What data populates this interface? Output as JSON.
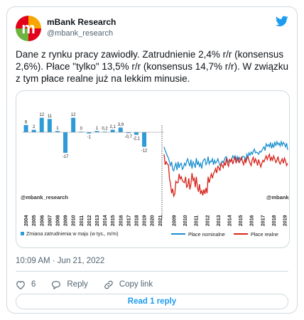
{
  "account": {
    "name": "mBank Research",
    "handle": "@mbank_research",
    "brand_colors": [
      "#e2001a",
      "#f7a600",
      "#6db33f"
    ],
    "verified_icon": "twitter-bird-icon",
    "twitter_blue": "#1d9bf0"
  },
  "tweet_text": "Dane z rynku pracy zawiodły. Zatrudnienie 2,4% r/r (konsensus 2,6%). Płace \"tylko\" 13,5% r/r (konsensus 14,7% r/r). W związku z tym płace realne już na lekkim minusie.",
  "timestamp": "10:09 AM · Jun 21, 2022",
  "actions": {
    "like_count": "6",
    "reply_label": "Reply",
    "copy_link_label": "Copy link"
  },
  "read_replies_label": "Read 1 reply",
  "chart_data": [
    {
      "type": "bar",
      "categories": [
        "2004",
        "2005",
        "2006",
        "2007",
        "2008",
        "2009",
        "2010",
        "2011",
        "2012",
        "2013",
        "2014",
        "2015",
        "2016",
        "2017",
        "2018",
        "2019",
        "2020",
        "2021"
      ],
      "values": [
        6,
        2,
        12,
        11,
        1,
        -17,
        12,
        0,
        -1,
        1,
        0.2,
        2.1,
        3.9,
        -0.7,
        -2.1,
        -12,
        null,
        null
      ],
      "value_labels": [
        "6",
        "2",
        "12",
        "11",
        "1",
        "-17",
        "12",
        "0",
        "-1",
        "1",
        "0,2",
        "2,1",
        "3,9",
        "-0,7",
        "-2,1",
        "-12",
        "",
        ""
      ],
      "x_tick_labels": [
        "2004",
        "2005",
        "2006",
        "2007",
        "2008",
        "2009",
        "2010",
        "2011",
        "2012",
        "2013",
        "2014",
        "2015",
        "2016",
        "2017",
        "2018",
        "2019",
        "2020",
        "2021"
      ],
      "legend": "Zmiana zatrudnienia w maju (w tys., m/m)",
      "color": "#2e9bd6",
      "watermark": "@mbank_research"
    },
    {
      "type": "line",
      "x_tick_labels": [
        "2009",
        "2010",
        "2011",
        "2012",
        "2013",
        "2014",
        "2015",
        "2016",
        "2017",
        "2018",
        "2019"
      ],
      "series": [
        {
          "name": "Płace nominalne",
          "color": "#1a8fd0",
          "values": [
            1.0,
            0.5,
            0.2,
            -0.2,
            -0.5,
            -1.0,
            -1.5,
            -1.0,
            -2.0,
            -2.2,
            -1.6,
            -1.2,
            -2.1,
            -1.0,
            -1.8,
            -1.3,
            -1.2,
            -2.0,
            -1.8,
            -1.2,
            -1.5,
            -0.9,
            -0.6,
            -1.2,
            -1.6,
            -0.7,
            -1.9,
            -1.0,
            -1.3,
            -1.8,
            -0.5,
            -1.4,
            -1.0,
            -1.6,
            -1.2,
            -1.9,
            -1.0,
            -0.7,
            -0.6,
            -1.4,
            -1.1,
            -0.3,
            -1.3,
            -0.9,
            -1.0,
            -0.6,
            -1.4,
            -0.8,
            -1.2,
            -1.0,
            -0.6,
            -1.1,
            -1.5,
            -1.4,
            -0.9,
            -1.1,
            -0.8,
            -0.4,
            -0.3,
            -0.8,
            -1.1,
            -0.7,
            -0.9,
            -0.6,
            -0.2,
            -0.5,
            -0.2,
            -0.7,
            -0.3,
            -0.9,
            -0.4,
            -0.8,
            -0.7,
            -0.3,
            -0.3,
            -0.4,
            -0.8,
            0.0,
            -0.4,
            0.2,
            -0.1,
            0.3,
            0.0,
            0.4,
            0.7,
            0.2,
            0.3,
            0.2,
            0.0,
            0.4,
            0.3,
            0.5,
            0.8,
            1.0,
            0.5,
            1.4,
            1.1,
            1.3,
            1.0,
            1.6,
            0.8,
            1.4,
            0.9,
            1.6,
            1.2,
            1.7,
            1.3,
            1.5,
            1.1,
            1.7,
            1.2,
            1.6,
            1.4,
            1.0,
            1.5,
            0.6
          ]
        },
        {
          "name": "Płace realne",
          "color": "#d7231b",
          "values": [
            0.0,
            -1.4,
            -1.0,
            -1.3,
            -1.4,
            -3.2,
            -4.0,
            -5.2,
            -4.6,
            -5.6,
            -5.3,
            -3.6,
            -3.8,
            -3.8,
            -2.6,
            -3.3,
            -3.0,
            -3.5,
            -3.7,
            -3.8,
            -3.0,
            -4.4,
            -4.2,
            -3.2,
            -4.7,
            -4.0,
            -2.5,
            -3.5,
            -3.2,
            -4.4,
            -3.0,
            -4.4,
            -5.0,
            -4.0,
            -5.3,
            -4.8,
            -5.5,
            -4.7,
            -5.3,
            -4.5,
            -5.2,
            -3.0,
            -3.8,
            -3.1,
            -2.6,
            -3.2,
            -2.6,
            -2.3,
            -1.9,
            -2.5,
            -1.6,
            -1.8,
            -2.2,
            -1.2,
            -1.5,
            -1.8,
            -1.1,
            -1.5,
            -0.5,
            -1.3,
            -1.6,
            -0.7,
            -1.0,
            -0.6,
            -1.3,
            -0.8,
            -0.4,
            -1.2,
            -0.7,
            -0.5,
            -1.1,
            -0.8,
            -0.4,
            -1.0,
            -1.4,
            -0.7,
            -1.1,
            -0.6,
            -0.3,
            -0.8,
            -1.2,
            -1.5,
            -0.7,
            -0.4,
            -1.2,
            -0.6,
            -0.9,
            -1.5,
            -0.7,
            -1.2,
            -1.7,
            -1.2,
            -0.8,
            -1.0,
            -0.6,
            -0.2,
            -0.7,
            -0.3,
            0.0,
            -0.9,
            -0.4,
            -0.8,
            -0.2,
            -0.6,
            -1.1,
            -0.8,
            -0.3,
            -1.0,
            -1.3,
            -0.9,
            -0.6,
            -1.2,
            -0.5,
            -0.9,
            -1.5,
            -1.2
          ]
        }
      ],
      "legend_entries": [
        "Płace nominalne",
        "Płace realne"
      ],
      "watermark": "@mbank_r"
    }
  ]
}
